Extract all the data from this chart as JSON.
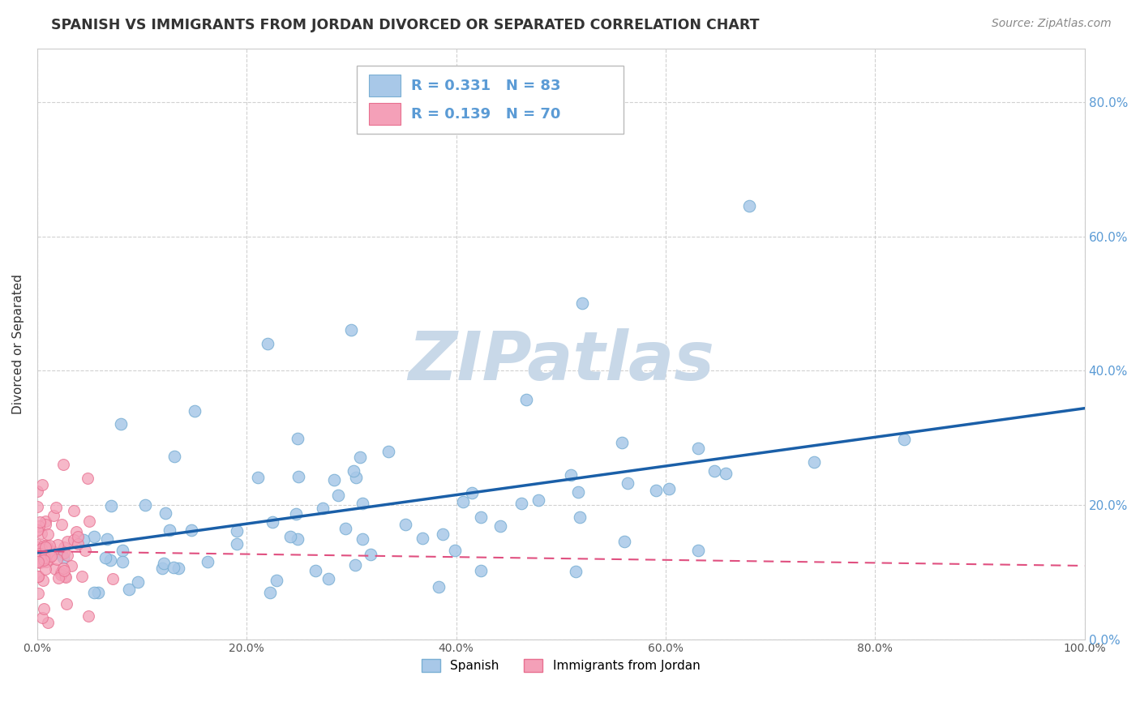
{
  "title": "SPANISH VS IMMIGRANTS FROM JORDAN DIVORCED OR SEPARATED CORRELATION CHART",
  "source": "Source: ZipAtlas.com",
  "ylabel": "Divorced or Separated",
  "R1": 0.331,
  "N1": 83,
  "R2": 0.139,
  "N2": 70,
  "blue_scatter_color": "#a8c8e8",
  "blue_scatter_edge": "#7aafd4",
  "pink_scatter_color": "#f4a0b8",
  "pink_scatter_edge": "#e87090",
  "blue_line_color": "#1a5fa8",
  "pink_line_color": "#e05080",
  "title_color": "#333333",
  "source_color": "#888888",
  "watermark_color": "#c8d8e8",
  "background_color": "#ffffff",
  "grid_color": "#cccccc",
  "tick_label_color_right": "#5b9bd5",
  "tick_label_color_left": "#888888",
  "legend_label_1": "Spanish",
  "legend_label_2": "Immigrants from Jordan",
  "xlim": [
    0.0,
    1.0
  ],
  "ylim": [
    0.0,
    0.88
  ],
  "x_tick_step": 0.2,
  "y_tick_step": 0.2
}
